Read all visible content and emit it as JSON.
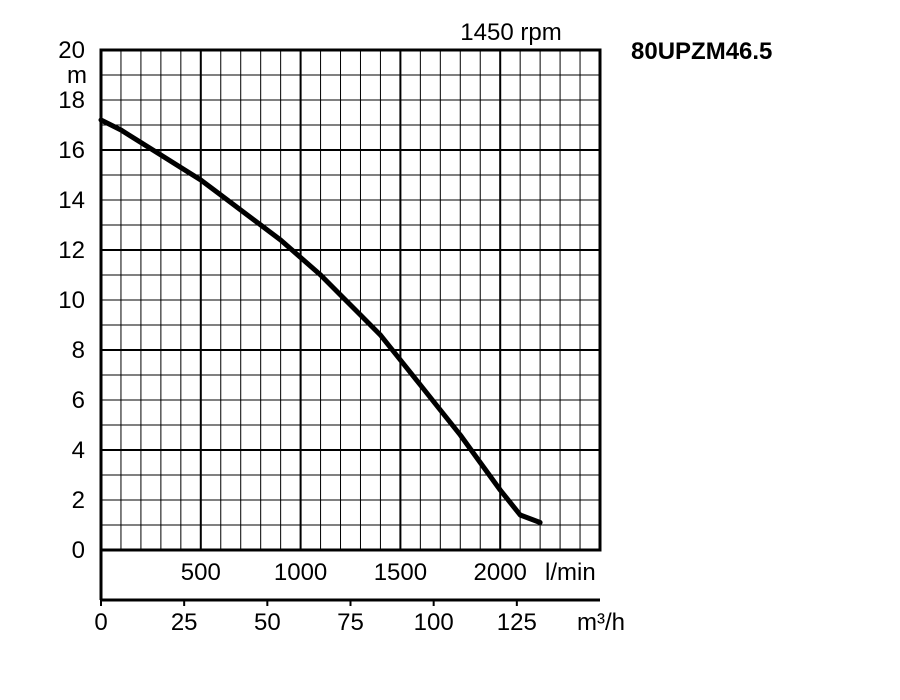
{
  "chart_data": {
    "type": "line",
    "title": "80UPZM46.5",
    "subtitle": "1450 rpm",
    "ylabel": "m",
    "ylim": [
      0,
      20
    ],
    "y_ticks": [
      "0",
      "2",
      "4",
      "6",
      "8",
      "10",
      "12",
      "14",
      "16",
      "18",
      "20"
    ],
    "x_units_primary": "l/min",
    "x_ticks_primary": [
      "500",
      "1000",
      "1500",
      "2000"
    ],
    "x_units_secondary": "m³/h",
    "x_ticks_secondary": [
      "0",
      "25",
      "50",
      "75",
      "100",
      "125"
    ],
    "xlim_lmin": [
      0,
      2500
    ],
    "grid": true,
    "series": [
      {
        "color": "#000000",
        "x": [
          0,
          100,
          200,
          300,
          400,
          500,
          600,
          700,
          800,
          900,
          1000,
          1100,
          1200,
          1300,
          1400,
          1500,
          1600,
          1700,
          1800,
          1900,
          2000,
          2100,
          2200
        ],
        "y": [
          17.2,
          16.8,
          16.3,
          15.8,
          15.3,
          14.8,
          14.2,
          13.6,
          13.0,
          12.4,
          11.7,
          11.0,
          10.2,
          9.4,
          8.6,
          7.6,
          6.6,
          5.6,
          4.6,
          3.5,
          2.4,
          1.4,
          1.1
        ]
      }
    ]
  }
}
